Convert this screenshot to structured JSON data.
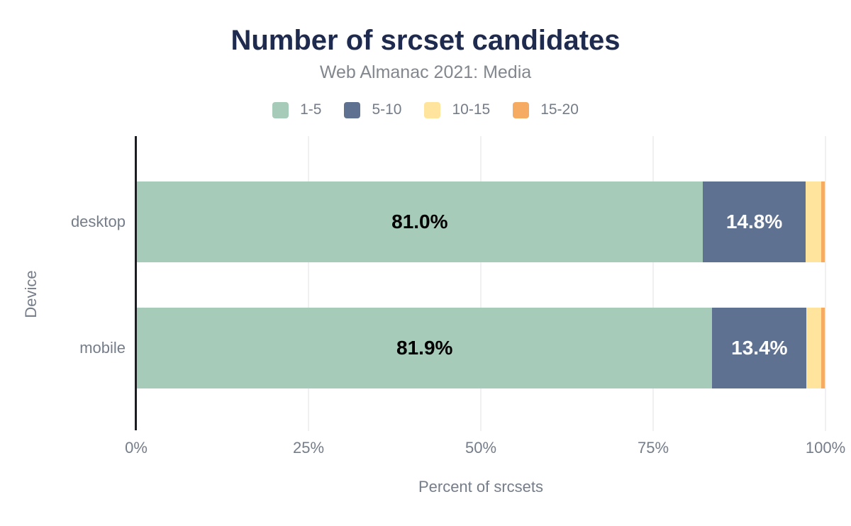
{
  "chart_data": {
    "type": "bar",
    "orientation": "horizontal",
    "stacked": true,
    "title": "Number of srcset candidates",
    "subtitle": "Web Almanac 2021: Media",
    "xlabel": "Percent of srcsets",
    "ylabel": "Device",
    "categories": [
      "desktop",
      "mobile"
    ],
    "series": [
      {
        "name": "1-5",
        "color": "#a6cbb8",
        "values": [
          81.0,
          81.9
        ],
        "bar_labels": [
          "81.0%",
          "81.9%"
        ],
        "label_color": "#000000"
      },
      {
        "name": "5-10",
        "color": "#5f7190",
        "values": [
          14.8,
          13.4
        ],
        "bar_labels": [
          "14.8%",
          "13.4%"
        ],
        "label_color": "#ffffff"
      },
      {
        "name": "10-15",
        "color": "#fee49c",
        "values": [
          2.2,
          2.1
        ],
        "bar_labels": [
          "",
          ""
        ],
        "label_color": "#000000"
      },
      {
        "name": "15-20",
        "color": "#f6ab62",
        "values": [
          0.5,
          0.5
        ],
        "bar_labels": [
          "",
          ""
        ],
        "label_color": "#000000"
      }
    ],
    "xlim": [
      0,
      100
    ],
    "x_tick_labels": [
      "0%",
      "25%",
      "50%",
      "75%",
      "100%"
    ],
    "legend_position": "top",
    "grid": "vertical-gridlines",
    "colors": {
      "title_text": "#1e2a4e",
      "muted_text": "#757d89",
      "gridline": "#f0f0f2",
      "axis_line": "#1b1d21",
      "background": "#ffffff"
    }
  }
}
